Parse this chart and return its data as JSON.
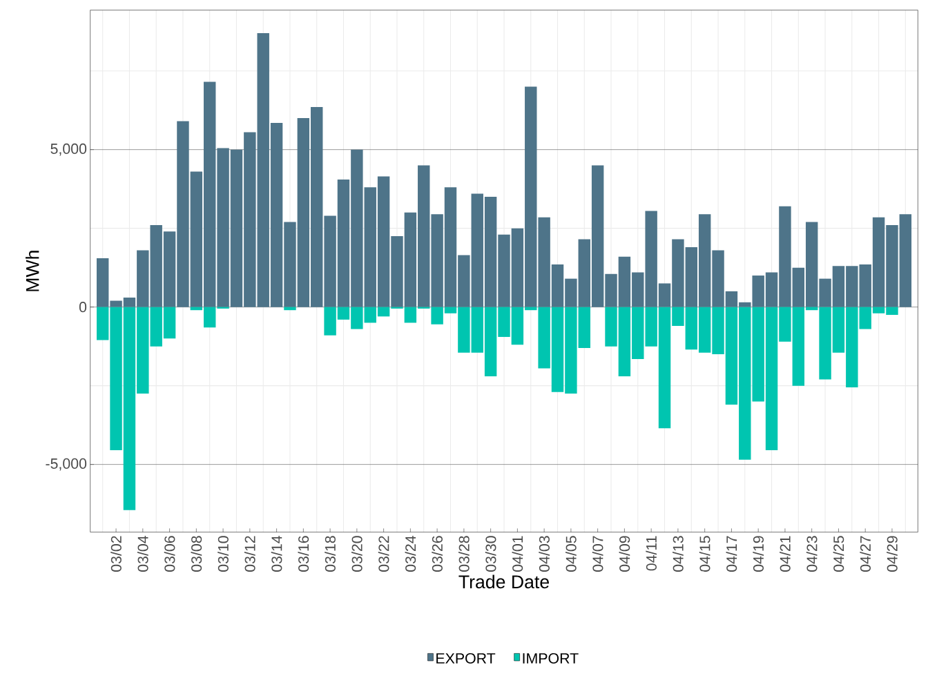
{
  "chart_data": {
    "type": "bar",
    "xlabel": "Trade Date",
    "ylabel": "MWh",
    "stacked": true,
    "categories": [
      null,
      "03/02",
      null,
      "03/04",
      null,
      "03/06",
      null,
      "03/08",
      null,
      "03/10",
      null,
      "03/12",
      null,
      "03/14",
      null,
      "03/16",
      null,
      "03/18",
      null,
      "03/20",
      null,
      "03/22",
      null,
      "03/24",
      null,
      "03/26",
      null,
      "03/28",
      null,
      "03/30",
      null,
      "04/01",
      null,
      "04/03",
      null,
      "04/05",
      null,
      "04/07",
      null,
      "04/09",
      null,
      "04/11",
      null,
      "04/13",
      null,
      "04/15",
      null,
      "04/17",
      null,
      "04/19",
      null,
      "04/21",
      null,
      "04/23",
      null,
      "04/25",
      null,
      "04/27",
      null,
      "04/29",
      null
    ],
    "series": [
      {
        "name": "EXPORT",
        "color": "#4e7489",
        "values": [
          1550,
          200,
          300,
          1800,
          2600,
          2400,
          5900,
          4300,
          7150,
          5050,
          5000,
          5550,
          8700,
          5850,
          2700,
          6000,
          6350,
          2900,
          4050,
          5000,
          3800,
          4150,
          2250,
          3000,
          4500,
          2950,
          3800,
          1650,
          3600,
          3500,
          2300,
          2500,
          7000,
          2850,
          1350,
          900,
          2150,
          4500,
          1050,
          1600,
          1100,
          3050,
          750,
          2150,
          1900,
          2950,
          1800,
          500,
          150,
          1000,
          1100,
          3200,
          1250,
          2700,
          900,
          1300,
          1300,
          1350,
          2850,
          2600,
          2950
        ]
      },
      {
        "name": "IMPORT",
        "color": "#00c5b0",
        "values": [
          -1050,
          -4550,
          -6450,
          -2750,
          -1250,
          -1000,
          null,
          -100,
          -650,
          -50,
          null,
          null,
          null,
          null,
          -100,
          null,
          null,
          -900,
          -400,
          -700,
          -500,
          -300,
          -50,
          -500,
          -50,
          -550,
          -200,
          -1450,
          -1450,
          -2200,
          -950,
          -1200,
          -100,
          -1950,
          -2700,
          -2750,
          -1300,
          null,
          -1250,
          -2200,
          -1650,
          -1250,
          -3850,
          -600,
          -1350,
          -1450,
          -1500,
          -3100,
          -4850,
          -3000,
          -4550,
          -1100,
          -2500,
          -100,
          -2300,
          -1450,
          -2550,
          -700,
          -200,
          -250,
          null
        ]
      }
    ],
    "ylim": [
      -7150,
      9430
    ],
    "yticks": [
      {
        "value": -5000,
        "label": "-5,000"
      },
      0,
      {
        "value": 5000,
        "label": "5,000"
      }
    ],
    "grid": true,
    "legend": "bottom"
  }
}
